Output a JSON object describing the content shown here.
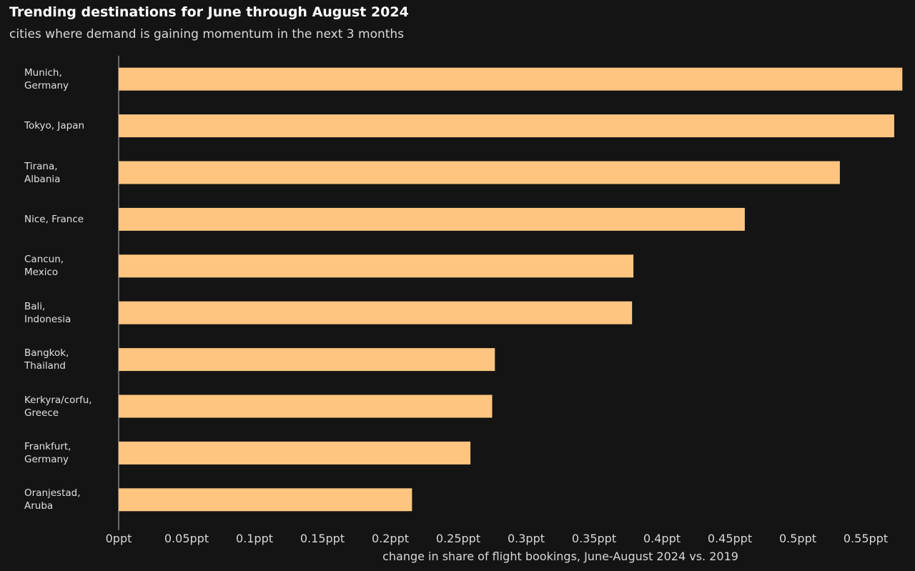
{
  "chart_data": {
    "type": "bar",
    "orientation": "horizontal",
    "title": "Trending destinations for June through August 2024",
    "subtitle": "cities where demand is gaining momentum in the next 3 months",
    "x_label": "change in share of flight bookings, June-August 2024 vs. 2019",
    "categories": [
      "Munich,\nGermany",
      "Tokyo, Japan",
      "Tirana,\nAlbania",
      "Nice, France",
      "Cancun,\nMexico",
      "Bali,\nIndonesia",
      "Bangkok,\nThailand",
      "Kerkyra/corfu,\nGreece",
      "Frankfurt,\nGermany",
      "Oranjestad,\nAruba"
    ],
    "values": [
      0.577,
      0.571,
      0.531,
      0.461,
      0.379,
      0.378,
      0.277,
      0.275,
      0.259,
      0.216
    ],
    "color": "#ffc580",
    "xlim": [
      0,
      0.586
    ],
    "xticks": [
      {
        "value": 0,
        "label": "0ppt"
      },
      {
        "value": 0.05,
        "label": "0.05ppt"
      },
      {
        "value": 0.1,
        "label": "0.1ppt"
      },
      {
        "value": 0.15,
        "label": "0.15ppt"
      },
      {
        "value": 0.2,
        "label": "0.2ppt"
      },
      {
        "value": 0.25,
        "label": "0.25ppt"
      },
      {
        "value": 0.3,
        "label": "0.3ppt"
      },
      {
        "value": 0.35,
        "label": "0.35ppt"
      },
      {
        "value": 0.4,
        "label": "0.4ppt"
      },
      {
        "value": 0.45,
        "label": "0.45ppt"
      },
      {
        "value": 0.5,
        "label": "0.5ppt"
      },
      {
        "value": 0.55,
        "label": "0.55ppt"
      }
    ],
    "grid": false
  }
}
